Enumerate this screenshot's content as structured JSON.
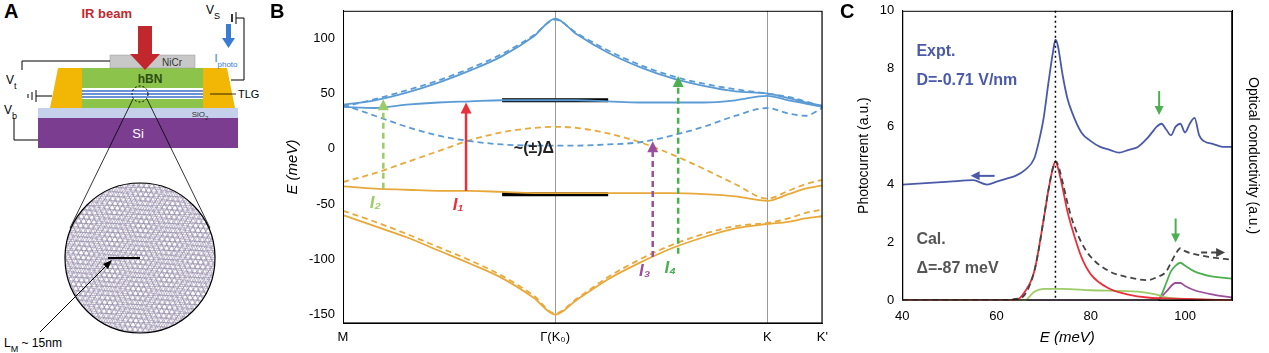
{
  "diagram": {
    "panel_label": "A",
    "labels": {
      "ir_beam": [
        "IR beam"
      ],
      "nicr": [
        "NiCr"
      ],
      "hbn": [
        "hBN"
      ],
      "tlg": [
        "TLG"
      ],
      "sio2": [
        "SiO",
        {
          "sub": "2"
        }
      ],
      "si": [
        "Si"
      ],
      "vt": [
        "V",
        {
          "sub": "t"
        }
      ],
      "vb": [
        "V",
        {
          "sub": "b"
        }
      ],
      "vs": [
        "V",
        {
          "sub": "S"
        }
      ],
      "iphoto": [
        "I",
        {
          "sub": "photo"
        }
      ],
      "moire_period": [
        "L",
        {
          "sub": "M"
        },
        " ~ 15nm"
      ]
    }
  },
  "chart_data": [
    {
      "panel_label": "B",
      "type": "line",
      "y_label": "E (meV)",
      "xlim": [
        0,
        2.26
      ],
      "xticks": [
        {
          "value": 0,
          "label": "M"
        },
        {
          "value": 1,
          "label": "Γ(K₀)"
        },
        {
          "value": 2,
          "label": "K"
        },
        {
          "value": 2.26,
          "label": "K'"
        }
      ],
      "ylim": [
        -158,
        125
      ],
      "yticks": [
        -150,
        -100,
        -50,
        0,
        50,
        100
      ],
      "grid": "x",
      "series": [
        {
          "color": "#5b9bd5",
          "line_style": "solid",
          "x": [
            0,
            0.15,
            0.3,
            0.45,
            0.6,
            0.75,
            0.9,
            1,
            1.1,
            1.25,
            1.4,
            1.55,
            1.7,
            1.85,
            2,
            2.1,
            2.18,
            2.26
          ],
          "values": [
            40,
            44,
            51,
            60,
            71,
            84,
            102,
            118,
            104,
            87,
            74,
            64,
            57,
            52,
            50,
            46,
            42,
            39
          ]
        },
        {
          "color": "#5b9bd5",
          "line_style": "dashed",
          "x": [
            0,
            0.15,
            0.3,
            0.45,
            0.6,
            0.75,
            0.9,
            1,
            1.1,
            1.25,
            1.4,
            1.55,
            1.7,
            1.85,
            2,
            2.1,
            2.18,
            2.26
          ],
          "values": [
            38,
            45,
            53,
            62,
            73,
            86,
            103,
            117,
            105,
            89,
            76,
            66,
            59,
            54,
            50,
            47,
            43,
            38
          ]
        },
        {
          "color": "#5b9bd5",
          "line_style": "solid",
          "x": [
            0,
            0.15,
            0.3,
            0.45,
            0.6,
            0.75,
            0.9,
            1,
            1.1,
            1.25,
            1.4,
            1.55,
            1.7,
            1.85,
            2,
            2.1,
            2.18,
            2.26
          ],
          "values": [
            38,
            37,
            40,
            42,
            43,
            44,
            44,
            44,
            44,
            43,
            42,
            42,
            42,
            44,
            48,
            44,
            41,
            38
          ]
        },
        {
          "color": "#5b9bd5",
          "line_style": "dashed",
          "x": [
            0,
            0.15,
            0.3,
            0.45,
            0.6,
            0.75,
            0.9,
            1,
            1.1,
            1.25,
            1.4,
            1.55,
            1.7,
            1.85,
            2,
            2.1,
            2.18,
            2.26
          ],
          "values": [
            40,
            30,
            20,
            12,
            7,
            4,
            3,
            3,
            3,
            4,
            6,
            12,
            20,
            30,
            37,
            32,
            30,
            37
          ]
        },
        {
          "color": "#e8a93a",
          "line_style": "solid",
          "x": [
            0,
            0.15,
            0.3,
            0.45,
            0.6,
            0.75,
            0.9,
            1,
            1.1,
            1.25,
            1.4,
            1.55,
            1.7,
            1.85,
            2,
            2.1,
            2.18,
            2.26
          ],
          "values": [
            -34,
            -36,
            -37,
            -38,
            -38,
            -39,
            -40,
            -40,
            -40,
            -40,
            -40,
            -40,
            -41,
            -43,
            -47,
            -41,
            -36,
            -33
          ]
        },
        {
          "color": "#e8a93a",
          "line_style": "dashed",
          "x": [
            0,
            0.15,
            0.3,
            0.45,
            0.6,
            0.75,
            0.9,
            1,
            1.1,
            1.25,
            1.4,
            1.55,
            1.7,
            1.85,
            2,
            2.1,
            2.18,
            2.26
          ],
          "values": [
            -30,
            -22,
            -12,
            -2,
            8,
            15,
            19,
            20,
            19,
            14,
            6,
            -5,
            -18,
            -32,
            -45,
            -38,
            -32,
            -28
          ]
        },
        {
          "color": "#e8a93a",
          "line_style": "solid",
          "x": [
            0,
            0.15,
            0.3,
            0.45,
            0.6,
            0.75,
            0.9,
            1,
            1.1,
            1.25,
            1.4,
            1.55,
            1.7,
            1.85,
            2,
            2.1,
            2.18,
            2.26
          ],
          "values": [
            -60,
            -70,
            -80,
            -92,
            -104,
            -117,
            -135,
            -150,
            -137,
            -118,
            -103,
            -90,
            -80,
            -72,
            -68,
            -66,
            -63,
            -61
          ]
        },
        {
          "color": "#e8a93a",
          "line_style": "dashed",
          "x": [
            0,
            0.15,
            0.3,
            0.45,
            0.6,
            0.75,
            0.9,
            1,
            1.1,
            1.25,
            1.4,
            1.55,
            1.7,
            1.85,
            2,
            2.1,
            2.18,
            2.26
          ],
          "values": [
            -56,
            -66,
            -77,
            -89,
            -101,
            -115,
            -133,
            -149,
            -136,
            -116,
            -100,
            -87,
            -77,
            -70,
            -67,
            -63,
            -58,
            -55
          ]
        },
        {
          "color": "#000000",
          "line_style": "solid",
          "x": [
            0.75,
            1.25
          ],
          "values": [
            44,
            44
          ]
        },
        {
          "color": "#000000",
          "line_style": "solid",
          "x": [
            0.75,
            1.25
          ],
          "values": [
            -41,
            -41
          ]
        }
      ],
      "arrows": [
        {
          "text": "I₁",
          "x": 0.58,
          "y_from": -38,
          "y_to": 42,
          "color": "#e8313b",
          "line_style": "solid"
        },
        {
          "text": "I₂",
          "x": 0.19,
          "y_from": -36,
          "y_to": 45,
          "color": "#9ccc65",
          "line_style": "dashed"
        },
        {
          "text": "I₃",
          "x": 1.46,
          "y_from": -98,
          "y_to": 7,
          "color": "#9b4f9b",
          "line_style": "dashed"
        },
        {
          "text": "I₄",
          "x": 1.58,
          "y_from": -95,
          "y_to": 66,
          "color": "#4caf50",
          "line_style": "dashed"
        }
      ],
      "annotations": [
        {
          "text": "~(±)Δ",
          "x": 0.9,
          "y": 0,
          "color": "#222222"
        }
      ]
    },
    {
      "panel_label": "C",
      "type": "line",
      "x_label": "E (meV)",
      "y_label": "Photocurrent (a.u.)",
      "y2_label": "Optical conductivity (a.u.)",
      "xlim": [
        40,
        110
      ],
      "xticks": [
        40,
        60,
        80,
        100
      ],
      "ylim": [
        0,
        10
      ],
      "yticks": [
        0,
        2,
        4,
        6,
        8,
        10
      ],
      "y2lim": [
        0,
        10
      ],
      "y2ticks": [],
      "grid": false,
      "series": [
        {
          "color": "#4a5aa8",
          "line_style": "solid",
          "axis": "y",
          "x": [
            40,
            45,
            50,
            55,
            58,
            60,
            62,
            64,
            66,
            68,
            69,
            70,
            71,
            72,
            72.5,
            73,
            74,
            75,
            76,
            78,
            80,
            82,
            84,
            86,
            88,
            90,
            92,
            93,
            94,
            95,
            96,
            97,
            98,
            99,
            100,
            101,
            102,
            103,
            104,
            106,
            108,
            110
          ],
          "values": [
            4.0,
            4.05,
            4.1,
            4.15,
            4.0,
            4.1,
            4.2,
            4.3,
            4.5,
            4.9,
            5.5,
            6.3,
            7.5,
            8.6,
            9.0,
            8.8,
            7.8,
            7.0,
            6.5,
            5.8,
            5.5,
            5.3,
            5.2,
            5.1,
            5.2,
            5.3,
            5.6,
            5.8,
            6.0,
            6.1,
            5.9,
            5.7,
            6.0,
            6.1,
            5.8,
            6.1,
            6.3,
            5.7,
            5.5,
            5.4,
            5.3,
            5.3
          ]
        },
        {
          "color": "#444444",
          "line_style": "dashed",
          "axis": "y2",
          "x": [
            40,
            60,
            64,
            66,
            68,
            69,
            70,
            71,
            72,
            72.5,
            73,
            74,
            75,
            76,
            78,
            80,
            84,
            88,
            92,
            94,
            96,
            97,
            98,
            99,
            100,
            102,
            105,
            110
          ],
          "values": [
            0,
            0,
            0.05,
            0.2,
            1.0,
            1.8,
            2.8,
            3.8,
            4.6,
            4.8,
            4.7,
            4.1,
            3.4,
            2.8,
            2.0,
            1.5,
            1.0,
            0.8,
            0.7,
            0.8,
            1.0,
            1.3,
            1.6,
            1.8,
            1.7,
            1.6,
            1.5,
            1.4
          ]
        },
        {
          "color": "#e8313b",
          "line_style": "solid",
          "axis": "y2",
          "x": [
            40,
            64,
            66,
            68,
            70,
            71,
            72,
            72.5,
            73,
            74,
            75,
            76,
            78,
            80,
            84,
            88,
            92,
            100,
            110
          ],
          "values": [
            0,
            0,
            0.3,
            1.0,
            2.8,
            3.8,
            4.6,
            4.8,
            4.6,
            3.9,
            3.1,
            2.5,
            1.5,
            0.9,
            0.4,
            0.2,
            0.1,
            0.05,
            0
          ]
        },
        {
          "color": "#9ccc65",
          "line_style": "solid",
          "axis": "y2",
          "x": [
            40,
            66,
            68,
            70,
            74,
            80,
            90,
            94,
            96,
            100,
            110
          ],
          "values": [
            0,
            0,
            0.3,
            0.4,
            0.4,
            0.35,
            0.3,
            0.2,
            0.1,
            0.05,
            0
          ]
        },
        {
          "color": "#9b4f9b",
          "line_style": "solid",
          "axis": "y2",
          "x": [
            40,
            94,
            96,
            98,
            99,
            100,
            102,
            106,
            110
          ],
          "values": [
            0,
            0,
            0.3,
            0.6,
            0.6,
            0.5,
            0.35,
            0.2,
            0.1
          ]
        },
        {
          "color": "#4caf50",
          "line_style": "solid",
          "axis": "y2",
          "x": [
            40,
            94,
            95,
            96,
            97,
            98,
            99,
            100,
            102,
            105,
            110
          ],
          "values": [
            0,
            0,
            0.2,
            0.6,
            1.0,
            1.2,
            1.3,
            1.2,
            1.0,
            0.85,
            0.75
          ]
        }
      ],
      "vlines": [
        {
          "x": 72.5,
          "line_style": "dotted",
          "color": "#000000"
        }
      ],
      "annotations": [
        {
          "text": "Expt.",
          "x": 43,
          "y": 8.6,
          "color": "#4a5aa8"
        },
        {
          "text": "D=-0.71 V/nm",
          "x": 43,
          "y": 7.6,
          "color": "#4a5aa8"
        },
        {
          "text": "Cal.",
          "x": 43,
          "y": 2.1,
          "color": "#555555"
        },
        {
          "text": "Δ=-87 meV",
          "x": 43,
          "y": 1.1,
          "color": "#555555"
        }
      ],
      "arrows": [
        {
          "x": 54.5,
          "y": 4.3,
          "direction": "left",
          "color": "#4a5aa8",
          "line_style": "solid"
        },
        {
          "x": 108.5,
          "y": 1.65,
          "direction": "right",
          "color": "#444444",
          "line_style": "dashed"
        },
        {
          "x": 94.5,
          "y": 6.4,
          "direction": "down",
          "color": "#4caf50",
          "line_style": "solid"
        },
        {
          "x": 98,
          "y": 2.0,
          "direction": "down",
          "color": "#4caf50",
          "line_style": "solid"
        }
      ]
    }
  ]
}
